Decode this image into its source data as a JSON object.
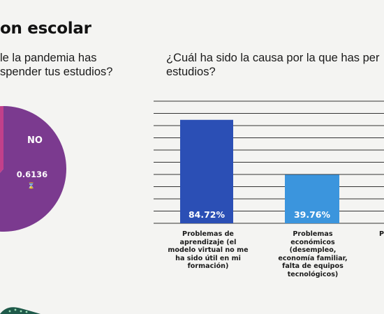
{
  "page": {
    "title": "on escolar",
    "left_question_lines": [
      "le la pandemia has",
      "spender tus estudios?"
    ],
    "right_question_lines": [
      "¿Cuál ha sido la causa por la que has per",
      "estudios?"
    ]
  },
  "colors": {
    "pie_main": "#7b3a8f",
    "pie_other": "#c2408a",
    "bar_1": "#2b4fb5",
    "bar_2": "#3b95dd",
    "grid": "#333333",
    "background": "#f4f4f2"
  },
  "chart_data": [
    {
      "type": "pie",
      "slices": [
        {
          "label": "NO",
          "value": 0.6136,
          "value_text": "0.6136",
          "color": "#7b3a8f"
        },
        {
          "label": "",
          "value": 0.3864,
          "color": "#c2408a"
        }
      ],
      "marker": "⌛"
    },
    {
      "type": "bar",
      "categories": [
        "Problemas de aprendizaje (el modelo virtual no me ha sido útil en mi formación)",
        "Problemas económicos (desempleo, economía familiar, falta de equipos tecnológicos)",
        "P"
      ],
      "category_lines": [
        [
          "Problemas de",
          "aprendizaje (el",
          "modelo virtual no me",
          "ha sido útil en mi",
          "formación)"
        ],
        [
          "Problemas",
          "económicos",
          "(desempleo,",
          "economía familiar,",
          "falta de equipos",
          "tecnológicos)"
        ],
        [
          "P"
        ]
      ],
      "values": [
        84.72,
        39.76,
        null
      ],
      "value_labels": [
        "84.72%",
        "39.76%",
        ""
      ],
      "ylim": [
        0,
        100
      ],
      "grid": true,
      "gridline_count": 10
    }
  ]
}
